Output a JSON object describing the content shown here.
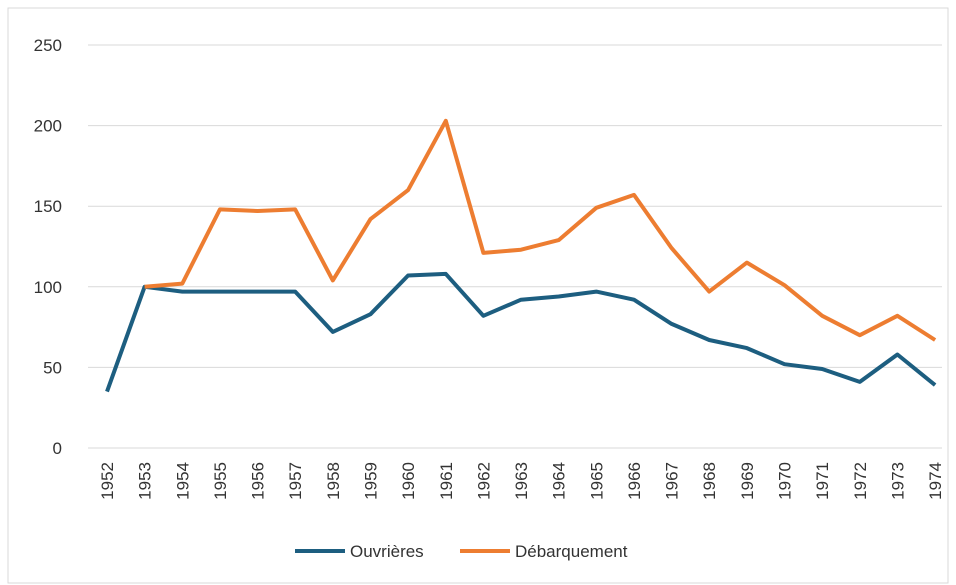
{
  "chart_data": {
    "type": "line",
    "categories": [
      "1952",
      "1953",
      "1954",
      "1955",
      "1956",
      "1957",
      "1958",
      "1959",
      "1960",
      "1961",
      "1962",
      "1963",
      "1964",
      "1965",
      "1966",
      "1967",
      "1968",
      "1969",
      "1970",
      "1971",
      "1972",
      "1973",
      "1974"
    ],
    "series": [
      {
        "name": "Ouvrières",
        "color": "#1d5e80",
        "values": [
          35,
          100,
          97,
          97,
          97,
          97,
          72,
          83,
          107,
          108,
          82,
          92,
          94,
          97,
          92,
          77,
          67,
          62,
          52,
          49,
          41,
          58,
          39
        ]
      },
      {
        "name": "Débarquement",
        "color": "#ed7d31",
        "values": [
          null,
          100,
          102,
          148,
          147,
          148,
          104,
          142,
          160,
          203,
          121,
          123,
          129,
          149,
          157,
          124,
          97,
          115,
          101,
          82,
          70,
          82,
          67
        ]
      }
    ],
    "ylim": [
      0,
      250
    ],
    "yticks": [
      0,
      50,
      100,
      150,
      200,
      250
    ],
    "grid": true,
    "legend": "bottom"
  }
}
